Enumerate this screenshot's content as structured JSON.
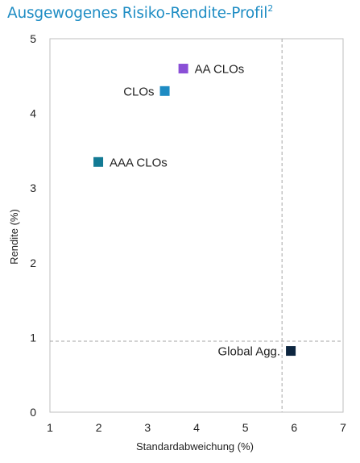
{
  "header": {
    "title": "Ausgewogenes Risiko-Rendite-Profil",
    "footnote_marker": "2"
  },
  "chart_data": {
    "type": "scatter",
    "title": "Ausgewogenes Risiko-Rendite-Profil",
    "xlabel": "Standardabweichung (%)",
    "ylabel": "Rendite (%)",
    "xlim": [
      1,
      7
    ],
    "ylim": [
      0,
      5
    ],
    "xticks": [
      "1",
      "2",
      "3",
      "4",
      "5",
      "6",
      "7"
    ],
    "yticks": [
      "0",
      "1",
      "2",
      "3",
      "4",
      "5"
    ],
    "grid": false,
    "points": [
      {
        "label": "AA CLOs",
        "x": 3.73,
        "y": 4.6,
        "color": "#8a4fd6",
        "label_side": "right"
      },
      {
        "label": "CLOs",
        "x": 3.35,
        "y": 4.3,
        "color": "#1e8bc3",
        "label_side": "left"
      },
      {
        "label": "AAA CLOs",
        "x": 1.99,
        "y": 3.35,
        "color": "#137a94",
        "label_side": "right"
      },
      {
        "label": "Global Agg.",
        "x": 5.93,
        "y": 0.82,
        "color": "#0d2640",
        "label_side": "left"
      }
    ],
    "reference_lines": {
      "x": 5.75,
      "y": 0.95
    }
  }
}
